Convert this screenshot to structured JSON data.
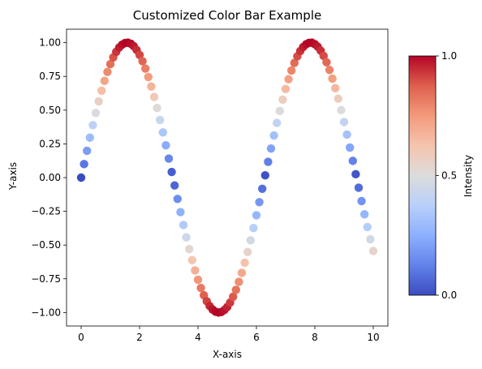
{
  "chart_data": {
    "type": "scatter",
    "title": "Customized Color Bar Example",
    "xlabel": "X-axis",
    "ylabel": "Y-axis",
    "xlim": [
      -0.5,
      10.5
    ],
    "ylim": [
      -1.1,
      1.1
    ],
    "xticks": [
      0,
      2,
      4,
      6,
      8,
      10
    ],
    "xtick_labels": [
      "0",
      "2",
      "4",
      "6",
      "8",
      "10"
    ],
    "yticks": [
      1.0,
      0.75,
      0.5,
      0.25,
      0.0,
      -0.25,
      -0.5,
      -0.75,
      -1.0
    ],
    "ytick_labels": [
      "1.00",
      "0.75",
      "0.50",
      "0.25",
      "0.00",
      "−0.25",
      "−0.50",
      "−0.75",
      "−1.00"
    ],
    "grid": false,
    "colormap": "coolwarm",
    "color_value": "abs(sin(x))",
    "x": [
      0,
      0.1,
      0.2,
      0.3,
      0.4,
      0.5,
      0.6,
      0.7,
      0.8,
      0.9,
      1.0,
      1.1,
      1.2,
      1.3,
      1.4,
      1.5,
      1.6,
      1.7,
      1.8,
      1.9,
      2.0,
      2.1,
      2.2,
      2.3,
      2.4,
      2.5,
      2.6,
      2.7,
      2.8,
      2.9,
      3.0,
      3.1,
      3.2,
      3.3,
      3.4,
      3.5,
      3.6,
      3.7,
      3.8,
      3.9,
      4.0,
      4.1,
      4.2,
      4.3,
      4.4,
      4.5,
      4.6,
      4.7,
      4.8,
      4.9,
      5.0,
      5.1,
      5.2,
      5.3,
      5.4,
      5.5,
      5.6,
      5.7,
      5.8,
      5.9,
      6.0,
      6.1,
      6.2,
      6.3,
      6.4,
      6.5,
      6.6,
      6.7,
      6.8,
      6.9,
      7.0,
      7.1,
      7.2,
      7.3,
      7.4,
      7.5,
      7.6,
      7.7,
      7.8,
      7.9,
      8.0,
      8.1,
      8.2,
      8.3,
      8.4,
      8.5,
      8.6,
      8.7,
      8.8,
      8.9,
      9.0,
      9.1,
      9.2,
      9.3,
      9.4,
      9.5,
      9.6,
      9.7,
      9.8,
      9.9,
      10.0
    ],
    "y": [
      0.0,
      0.1,
      0.199,
      0.296,
      0.389,
      0.479,
      0.565,
      0.644,
      0.717,
      0.783,
      0.841,
      0.891,
      0.932,
      0.964,
      0.985,
      0.997,
      1.0,
      0.992,
      0.974,
      0.946,
      0.909,
      0.863,
      0.808,
      0.746,
      0.675,
      0.598,
      0.516,
      0.427,
      0.335,
      0.239,
      0.141,
      0.042,
      -0.058,
      -0.158,
      -0.256,
      -0.351,
      -0.443,
      -0.53,
      -0.612,
      -0.688,
      -0.757,
      -0.818,
      -0.872,
      -0.916,
      -0.952,
      -0.978,
      -0.994,
      -1.0,
      -0.996,
      -0.982,
      -0.959,
      -0.926,
      -0.883,
      -0.832,
      -0.773,
      -0.706,
      -0.631,
      -0.551,
      -0.465,
      -0.374,
      -0.279,
      -0.182,
      -0.083,
      0.017,
      0.117,
      0.215,
      0.312,
      0.405,
      0.494,
      0.578,
      0.657,
      0.729,
      0.794,
      0.85,
      0.899,
      0.938,
      0.968,
      0.988,
      0.999,
      1.0,
      0.989,
      0.97,
      0.941,
      0.902,
      0.855,
      0.798,
      0.734,
      0.663,
      0.585,
      0.501,
      0.412,
      0.319,
      0.223,
      0.124,
      0.025,
      -0.075,
      -0.174,
      -0.272,
      -0.366,
      -0.457,
      -0.544
    ],
    "colorbar": {
      "label": "Intensity",
      "ticks": [
        0.0,
        0.5,
        1.0
      ],
      "tick_labels": [
        "0.0",
        "0.5",
        "1.0"
      ],
      "range": [
        0.0,
        1.0
      ]
    }
  }
}
